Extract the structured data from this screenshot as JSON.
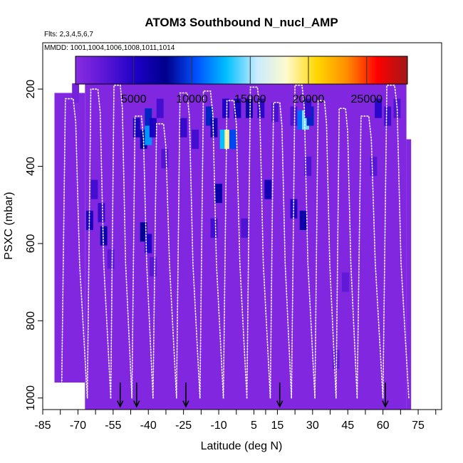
{
  "chart_data": {
    "type": "heatmap",
    "title": "ATOM3 Southbound N_nucl_AMP",
    "annotations": {
      "flights": "Flts: 2,3,4,5,6,7",
      "dates": "MMDD: 1001,1004,1006,1008,1011,1014"
    },
    "xlabel": "Latitude (deg N)",
    "ylabel": "PSXC (mbar)",
    "xlim": [
      -85,
      85
    ],
    "ylim": [
      1030,
      80
    ],
    "x_ticks": [
      -85,
      -70,
      -55,
      -40,
      -25,
      -10,
      5,
      15,
      30,
      45,
      60,
      75
    ],
    "y_ticks": [
      200,
      400,
      600,
      800,
      1000
    ],
    "colorbar": {
      "range": [
        0,
        28500
      ],
      "ticks": [
        5000,
        10000,
        15000,
        20000,
        25000
      ],
      "colors": [
        "#8a2be2",
        "#5a16d6",
        "#1c00c6",
        "#00008b",
        "#0050ff",
        "#00bfff",
        "#c8ecff",
        "#fffacd",
        "#ffd700",
        "#ff8c00",
        "#ff0000",
        "#a01818"
      ]
    },
    "background_value": 500,
    "cells": [
      {
        "lat": -71,
        "p": 210,
        "v": 1200
      },
      {
        "lat": -45,
        "p": 300,
        "v": 5500
      },
      {
        "lat": -42,
        "p": 330,
        "v": 7000
      },
      {
        "lat": -40,
        "p": 275,
        "v": 9000
      },
      {
        "lat": -40,
        "p": 320,
        "v": 12000
      },
      {
        "lat": -38,
        "p": 300,
        "v": 5200
      },
      {
        "lat": -35,
        "p": 250,
        "v": 3500
      },
      {
        "lat": -25,
        "p": 300,
        "v": 4000
      },
      {
        "lat": -20,
        "p": 330,
        "v": 3500
      },
      {
        "lat": -14,
        "p": 270,
        "v": 9000
      },
      {
        "lat": -12,
        "p": 300,
        "v": 6000
      },
      {
        "lat": -8,
        "p": 330,
        "v": 13000
      },
      {
        "lat": -6,
        "p": 330,
        "v": 19000
      },
      {
        "lat": -4,
        "p": 330,
        "v": 10000
      },
      {
        "lat": -7,
        "p": 250,
        "v": 5000
      },
      {
        "lat": -2,
        "p": 250,
        "v": 5600
      },
      {
        "lat": 3,
        "p": 250,
        "v": 6500
      },
      {
        "lat": 8,
        "p": 250,
        "v": 4500
      },
      {
        "lat": 14,
        "p": 260,
        "v": 3200
      },
      {
        "lat": 22,
        "p": 270,
        "v": 3000
      },
      {
        "lat": 25,
        "p": 280,
        "v": 11000
      },
      {
        "lat": 27,
        "p": 280,
        "v": 14500
      },
      {
        "lat": 29,
        "p": 270,
        "v": 9000
      },
      {
        "lat": 28,
        "p": 250,
        "v": 4000
      },
      {
        "lat": 58,
        "p": 250,
        "v": 4500
      },
      {
        "lat": 62,
        "p": 270,
        "v": 3800
      },
      {
        "lat": 66,
        "p": 250,
        "v": 3000
      },
      {
        "lat": -63,
        "p": 460,
        "v": 3500
      },
      {
        "lat": -60,
        "p": 520,
        "v": 4000
      },
      {
        "lat": -65,
        "p": 540,
        "v": 5500
      },
      {
        "lat": -59,
        "p": 580,
        "v": 6500
      },
      {
        "lat": -42,
        "p": 570,
        "v": 7500
      },
      {
        "lat": -40,
        "p": 600,
        "v": 5000
      },
      {
        "lat": -38,
        "p": 660,
        "v": 2500
      },
      {
        "lat": -10,
        "p": 470,
        "v": 6500
      },
      {
        "lat": -12,
        "p": 560,
        "v": 3500
      },
      {
        "lat": 11,
        "p": 460,
        "v": 6000
      },
      {
        "lat": 22,
        "p": 510,
        "v": 5000
      },
      {
        "lat": 26,
        "p": 540,
        "v": 6500
      },
      {
        "lat": 28,
        "p": 400,
        "v": 3000
      },
      {
        "lat": -33,
        "p": 380,
        "v": 2800
      },
      {
        "lat": 1,
        "p": 560,
        "v": 3000
      },
      {
        "lat": -56,
        "p": 640,
        "v": 2500
      },
      {
        "lat": 44,
        "p": 700,
        "v": 2200
      },
      {
        "lat": 40,
        "p": 900,
        "v": 2200
      },
      {
        "lat": 56,
        "p": 400,
        "v": 2600
      }
    ],
    "flight_profiles": [
      {
        "lat_start": -77,
        "lat_end": -66,
        "p_top": 225
      },
      {
        "lat_start": -66,
        "lat_end": -56,
        "p_top": 200
      },
      {
        "lat_start": -56,
        "lat_end": -47,
        "p_top": 190
      },
      {
        "lat_start": -47,
        "lat_end": -38,
        "p_top": 270
      },
      {
        "lat_start": -38,
        "lat_end": -28,
        "p_top": 290
      },
      {
        "lat_start": -28,
        "lat_end": -18,
        "p_top": 210
      },
      {
        "lat_start": -18,
        "lat_end": -8,
        "p_top": 205
      },
      {
        "lat_start": -8,
        "lat_end": 2,
        "p_top": 230
      },
      {
        "lat_start": 2,
        "lat_end": 12,
        "p_top": 195
      },
      {
        "lat_start": 12,
        "lat_end": 21,
        "p_top": 235
      },
      {
        "lat_start": 21,
        "lat_end": 31,
        "p_top": 190
      },
      {
        "lat_start": 31,
        "lat_end": 40,
        "p_top": 230
      },
      {
        "lat_start": 40,
        "lat_end": 49,
        "p_top": 250
      },
      {
        "lat_start": 49,
        "lat_end": 60,
        "p_top": 270
      },
      {
        "lat_start": 60,
        "lat_end": 71,
        "p_top": 190
      }
    ],
    "arrow_latitudes": [
      -52,
      -45,
      -24,
      16,
      61
    ]
  }
}
